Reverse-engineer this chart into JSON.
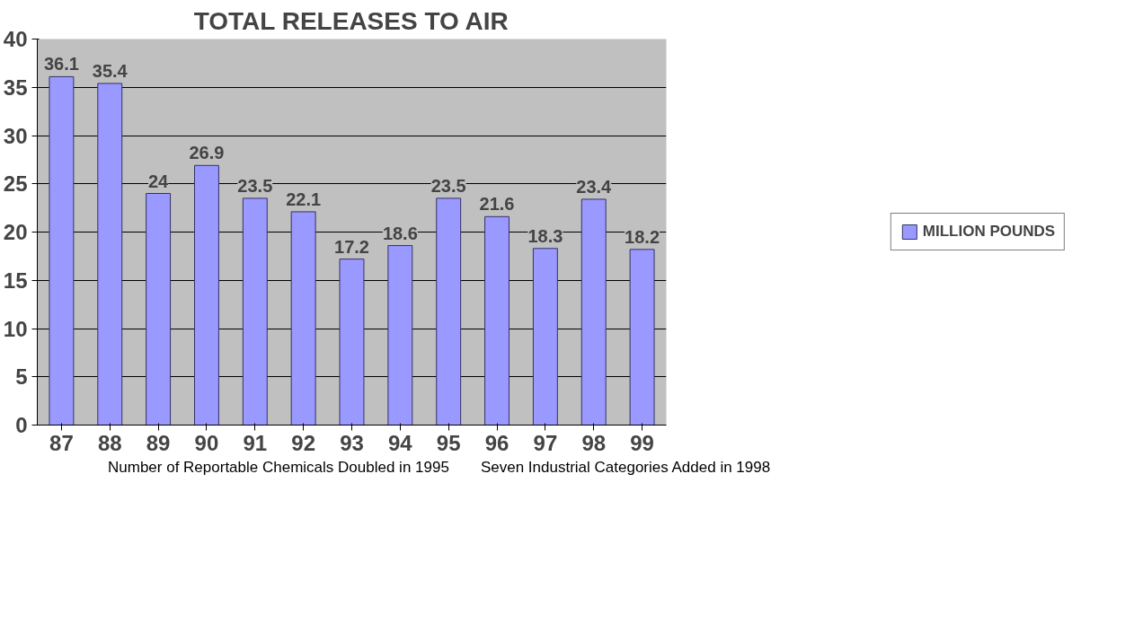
{
  "chart_data": {
    "type": "bar",
    "title": "TOTAL RELEASES TO AIR",
    "categories": [
      "87",
      "88",
      "89",
      "90",
      "91",
      "92",
      "93",
      "94",
      "95",
      "96",
      "97",
      "98",
      "99"
    ],
    "series": [
      {
        "name": "MILLION POUNDS",
        "color": "#9999ff",
        "values": [
          36.1,
          35.4,
          24,
          26.9,
          23.5,
          22.1,
          17.2,
          18.6,
          23.5,
          21.6,
          18.3,
          23.4,
          18.2
        ]
      }
    ],
    "ylim": [
      0,
      40
    ],
    "yticks": [
      0,
      5,
      10,
      15,
      20,
      25,
      30,
      35,
      40
    ],
    "grid": "y",
    "legend": "right",
    "data_labels": true,
    "annotations": [
      "Number of Reportable Chemicals Doubled in 1995",
      "Seven Industrial Categories Added in 1998"
    ]
  }
}
